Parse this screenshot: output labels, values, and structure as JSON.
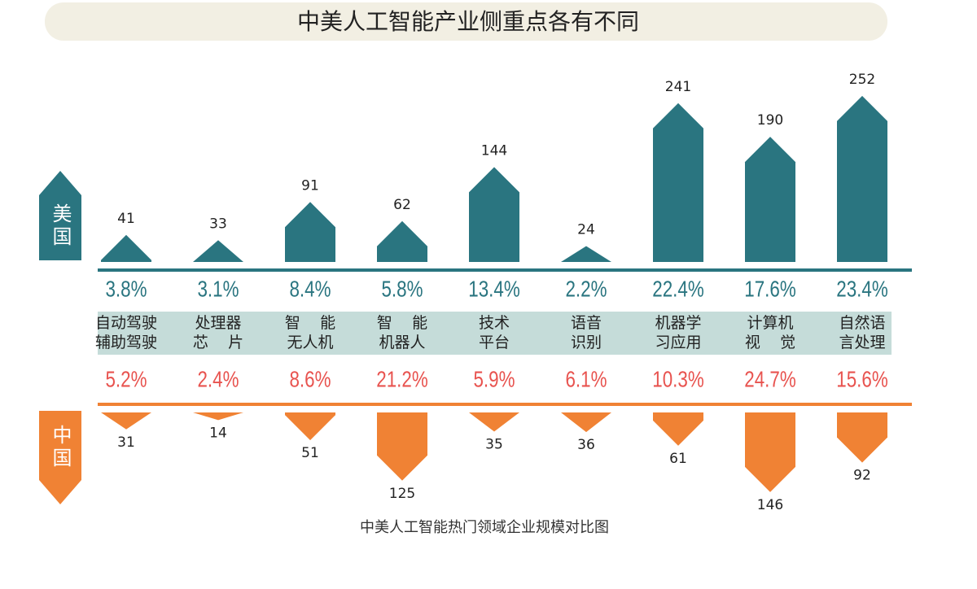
{
  "chart_data": {
    "type": "bar",
    "title": "中美人工智能产业侧重点各有不同",
    "caption": "中美人工智能热门领域企业规模对比图",
    "categories": [
      "自动驾驶\n辅助驾驶",
      "处理器\n芯    片",
      "智    能\n无人机",
      "智    能\n机器人",
      "技术\n平台",
      "语音\n识别",
      "机器学\n习应用",
      "计算机\n视    觉",
      "自然语\n言处理"
    ],
    "series": [
      {
        "name": "美国",
        "color": "#2a7580",
        "share_color": "#2a7580",
        "values": [
          41,
          33,
          91,
          62,
          144,
          24,
          241,
          190,
          252
        ],
        "shares": [
          "3.8%",
          "3.1%",
          "8.4%",
          "5.8%",
          "13.4%",
          "2.2%",
          "22.4%",
          "17.6%",
          "23.4%"
        ]
      },
      {
        "name": "中国",
        "color": "#f08234",
        "share_color": "#e8534f",
        "values": [
          31,
          14,
          51,
          125,
          35,
          36,
          61,
          146,
          92
        ],
        "shares": [
          "5.2%",
          "2.4%",
          "8.6%",
          "21.2%",
          "5.9%",
          "6.1%",
          "10.3%",
          "24.7%",
          "15.6%"
        ]
      }
    ]
  }
}
